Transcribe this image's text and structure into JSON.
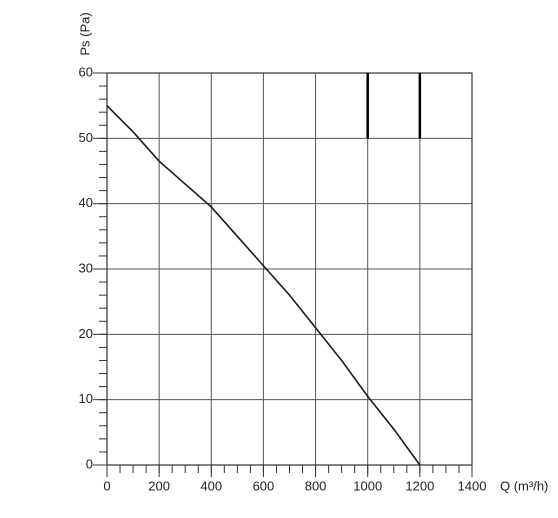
{
  "chart_data": {
    "type": "line",
    "x_label": "Q (m³/h)",
    "y_label": "Ps (Pa)",
    "x": [
      0,
      100,
      200,
      300,
      400,
      500,
      600,
      700,
      800,
      900,
      1000,
      1100,
      1200
    ],
    "series": [
      {
        "color": "#1a1a1a",
        "values": [
          55,
          51,
          46.5,
          43,
          39.5,
          35,
          30.5,
          26,
          21,
          16,
          10.5,
          5.5,
          0
        ]
      }
    ],
    "xlim": [
      0,
      1400
    ],
    "ylim": [
      0,
      60
    ],
    "xticks": [
      0,
      200,
      400,
      600,
      800,
      1000,
      1200,
      1400
    ],
    "yticks": [
      0,
      10,
      20,
      30,
      40,
      50,
      60
    ],
    "x_minor_step": 50,
    "y_minor_step": 2,
    "grid": true,
    "limit_lines": [
      {
        "x": 1000,
        "y": [
          50,
          60
        ]
      },
      {
        "x": 1200,
        "y": [
          50,
          60
        ]
      }
    ]
  }
}
